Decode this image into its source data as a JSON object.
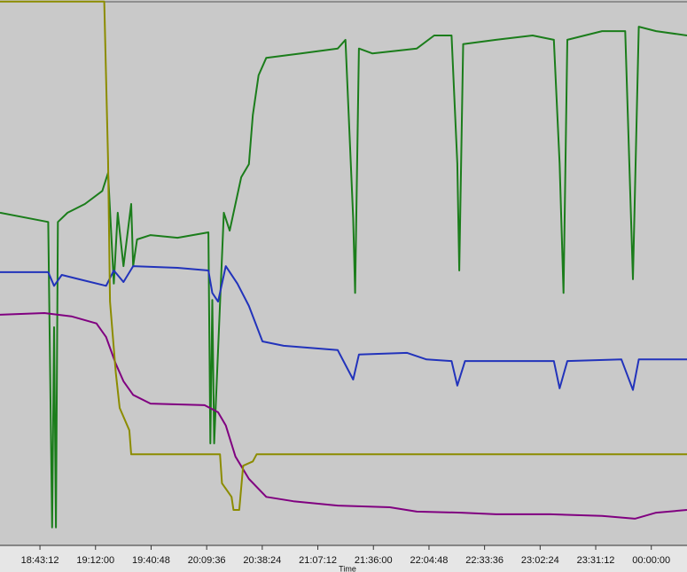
{
  "chart_data": {
    "type": "line",
    "x_label": "Time",
    "xlim": [
      "18:22:30",
      "00:18:30"
    ],
    "xticks": [
      "18:43:12",
      "19:12:00",
      "19:40:48",
      "20:09:36",
      "20:38:24",
      "21:07:12",
      "21:36:00",
      "22:04:48",
      "22:33:36",
      "23:02:24",
      "23:31:12",
      "00:00:00"
    ],
    "ylim": [
      0,
      100
    ],
    "series": [
      {
        "color": "#1b7d1b",
        "x": [
          "18:22:30",
          "18:47:30",
          "18:49:30",
          "18:50:30",
          "18:51:30",
          "18:52:30",
          "18:57:30",
          "19:06:30",
          "19:15:30",
          "19:18:30",
          "19:21:30",
          "19:23:30",
          "19:26:30",
          "19:30:30",
          "19:31:30",
          "19:33:30",
          "19:40:30",
          "19:54:30",
          "20:10:30",
          "20:11:30",
          "20:12:30",
          "20:13:30",
          "20:18:30",
          "20:21:30",
          "20:24:30",
          "20:27:30",
          "20:31:30",
          "20:33:30",
          "20:36:30",
          "20:40:30",
          "20:58:30",
          "21:17:30",
          "21:21:30",
          "21:25:30",
          "21:26:30",
          "21:28:30",
          "21:35:30",
          "21:58:30",
          "22:07:30",
          "22:16:30",
          "22:19:30",
          "22:20:30",
          "22:22:30",
          "22:39:30",
          "22:58:30",
          "23:09:30",
          "23:12:30",
          "23:14:30",
          "23:16:30",
          "23:34:30",
          "23:46:30",
          "23:50:30",
          "23:53:30",
          "00:02:30",
          "00:18:30"
        ],
        "values": [
          61.0,
          59.3,
          3.3,
          40,
          3.3,
          59.3,
          61.0,
          62.6,
          65.0,
          68.3,
          48.0,
          61.0,
          51.2,
          62.6,
          51.2,
          56.1,
          56.9,
          56.4,
          57.4,
          18.7,
          45,
          18.7,
          61.0,
          57.7,
          62.6,
          67.5,
          69.9,
          78.9,
          86.2,
          89.4,
          90.2,
          91.1,
          92.7,
          60,
          46.3,
          91.1,
          90.2,
          91.1,
          93.5,
          93.5,
          70,
          50.4,
          91.9,
          92.7,
          93.5,
          92.7,
          70,
          46.3,
          92.7,
          94.3,
          94.3,
          48.8,
          95.1,
          94.3,
          93.5
        ]
      },
      {
        "color": "#2233bb",
        "x": [
          "18:22:30",
          "18:47:30",
          "18:50:30",
          "18:54:30",
          "19:03:30",
          "19:17:30",
          "19:21:30",
          "19:26:30",
          "19:31:30",
          "19:54:30",
          "20:10:30",
          "20:12:30",
          "20:15:30",
          "20:19:30",
          "20:25:30",
          "20:31:30",
          "20:38:30",
          "20:49:30",
          "21:17:30",
          "21:25:30",
          "21:28:30",
          "21:53:30",
          "22:03:30",
          "22:16:30",
          "22:19:30",
          "22:23:30",
          "23:09:30",
          "23:12:30",
          "23:16:30",
          "23:44:30",
          "23:50:30",
          "23:53:30",
          "00:18:30"
        ],
        "values": [
          50.1,
          50.1,
          47.6,
          49.6,
          48.8,
          47.6,
          50.4,
          48.3,
          51.2,
          50.9,
          50.4,
          46.3,
          44.7,
          51.2,
          48.0,
          43.9,
          37.4,
          36.6,
          35.8,
          30.4,
          35.0,
          35.3,
          34.1,
          33.8,
          29.3,
          33.8,
          33.8,
          28.8,
          33.8,
          34.1,
          28.5,
          34.1,
          34.1
        ]
      },
      {
        "color": "#800080",
        "x": [
          "18:22:30",
          "18:45:30",
          "18:59:30",
          "19:12:30",
          "19:17:30",
          "19:22:30",
          "19:26:30",
          "19:31:30",
          "19:40:30",
          "20:08:30",
          "20:15:30",
          "20:19:30",
          "20:24:30",
          "20:31:30",
          "20:40:30",
          "20:54:30",
          "21:17:30",
          "21:44:30",
          "21:58:30",
          "22:21:30",
          "22:39:30",
          "23:07:30",
          "23:34:30",
          "23:51:30",
          "00:02:30",
          "00:18:30"
        ],
        "values": [
          42.3,
          42.6,
          42.0,
          40.7,
          38.2,
          33.3,
          30.1,
          27.6,
          26.0,
          25.7,
          24.4,
          22.0,
          16.3,
          12.2,
          8.9,
          8.1,
          7.3,
          7.0,
          6.2,
          6.0,
          5.7,
          5.7,
          5.4,
          4.9,
          6.0,
          6.5
        ]
      },
      {
        "color": "#8c8c00",
        "x": [
          "18:22:30",
          "19:16:30",
          "19:18:30",
          "19:19:30",
          "19:22:30",
          "19:24:30",
          "19:29:30",
          "19:30:30",
          "20:16:30",
          "20:17:30",
          "20:22:30",
          "20:23:30",
          "20:26:30",
          "20:28:30",
          "20:33:30",
          "20:35:30",
          "00:18:30"
        ],
        "values": [
          99.7,
          99.7,
          70.7,
          44.7,
          31.7,
          25.2,
          21.1,
          16.7,
          16.7,
          11.4,
          8.9,
          6.5,
          6.5,
          14.6,
          15.4,
          16.7,
          16.7
        ]
      }
    ]
  }
}
